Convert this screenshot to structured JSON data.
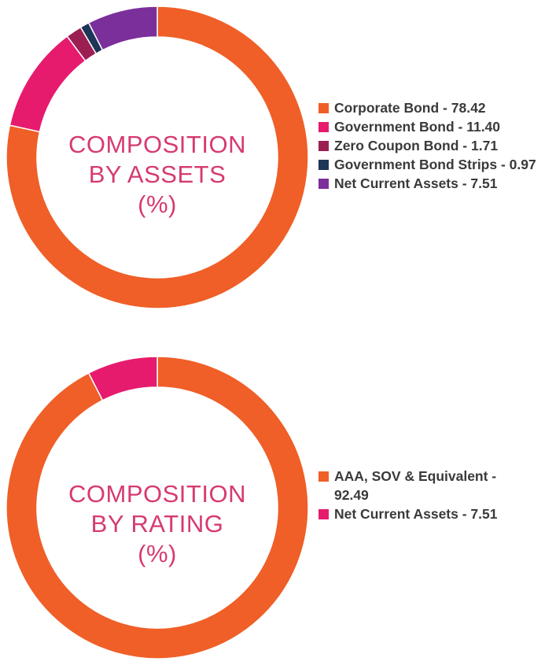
{
  "chart_data": [
    {
      "type": "pie",
      "title": "COMPOSITION BY ASSETS (%)",
      "title_lines": [
        "COMPOSITION",
        "BY ASSETS",
        "(%)"
      ],
      "categories": [
        "Corporate Bond",
        "Government Bond",
        "Zero Coupon Bond",
        "Government Bond Strips",
        "Net Current Assets"
      ],
      "values": [
        78.42,
        11.4,
        1.71,
        0.97,
        7.51
      ],
      "value_labels": [
        "78.42",
        "11.40",
        "1.71",
        "0.97",
        "7.51"
      ],
      "colors": [
        "#ef5f27",
        "#e61b6d",
        "#9c1f52",
        "#1d3557",
        "#7b2f9a"
      ],
      "legend_labels": [
        "Corporate Bond - 78.42",
        "Government Bond - 11.40",
        "Zero Coupon Bond - 1.71",
        "Government Bond Strips - 0.97",
        "Net Current Assets - 7.51"
      ],
      "legend_position": "right",
      "donut": true
    },
    {
      "type": "pie",
      "title": "COMPOSITION BY RATING (%)",
      "title_lines": [
        "COMPOSITION",
        "BY RATING",
        "(%)"
      ],
      "categories": [
        "AAA, SOV & Equivalent",
        "Net Current Assets"
      ],
      "values": [
        92.49,
        7.51
      ],
      "value_labels": [
        "92.49",
        "7.51"
      ],
      "colors": [
        "#ef5f27",
        "#e61b6d"
      ],
      "legend_labels": [
        "AAA, SOV & Equivalent - 92.49",
        "Net Current Assets - 7.51"
      ],
      "legend_position": "right",
      "donut": true
    }
  ]
}
